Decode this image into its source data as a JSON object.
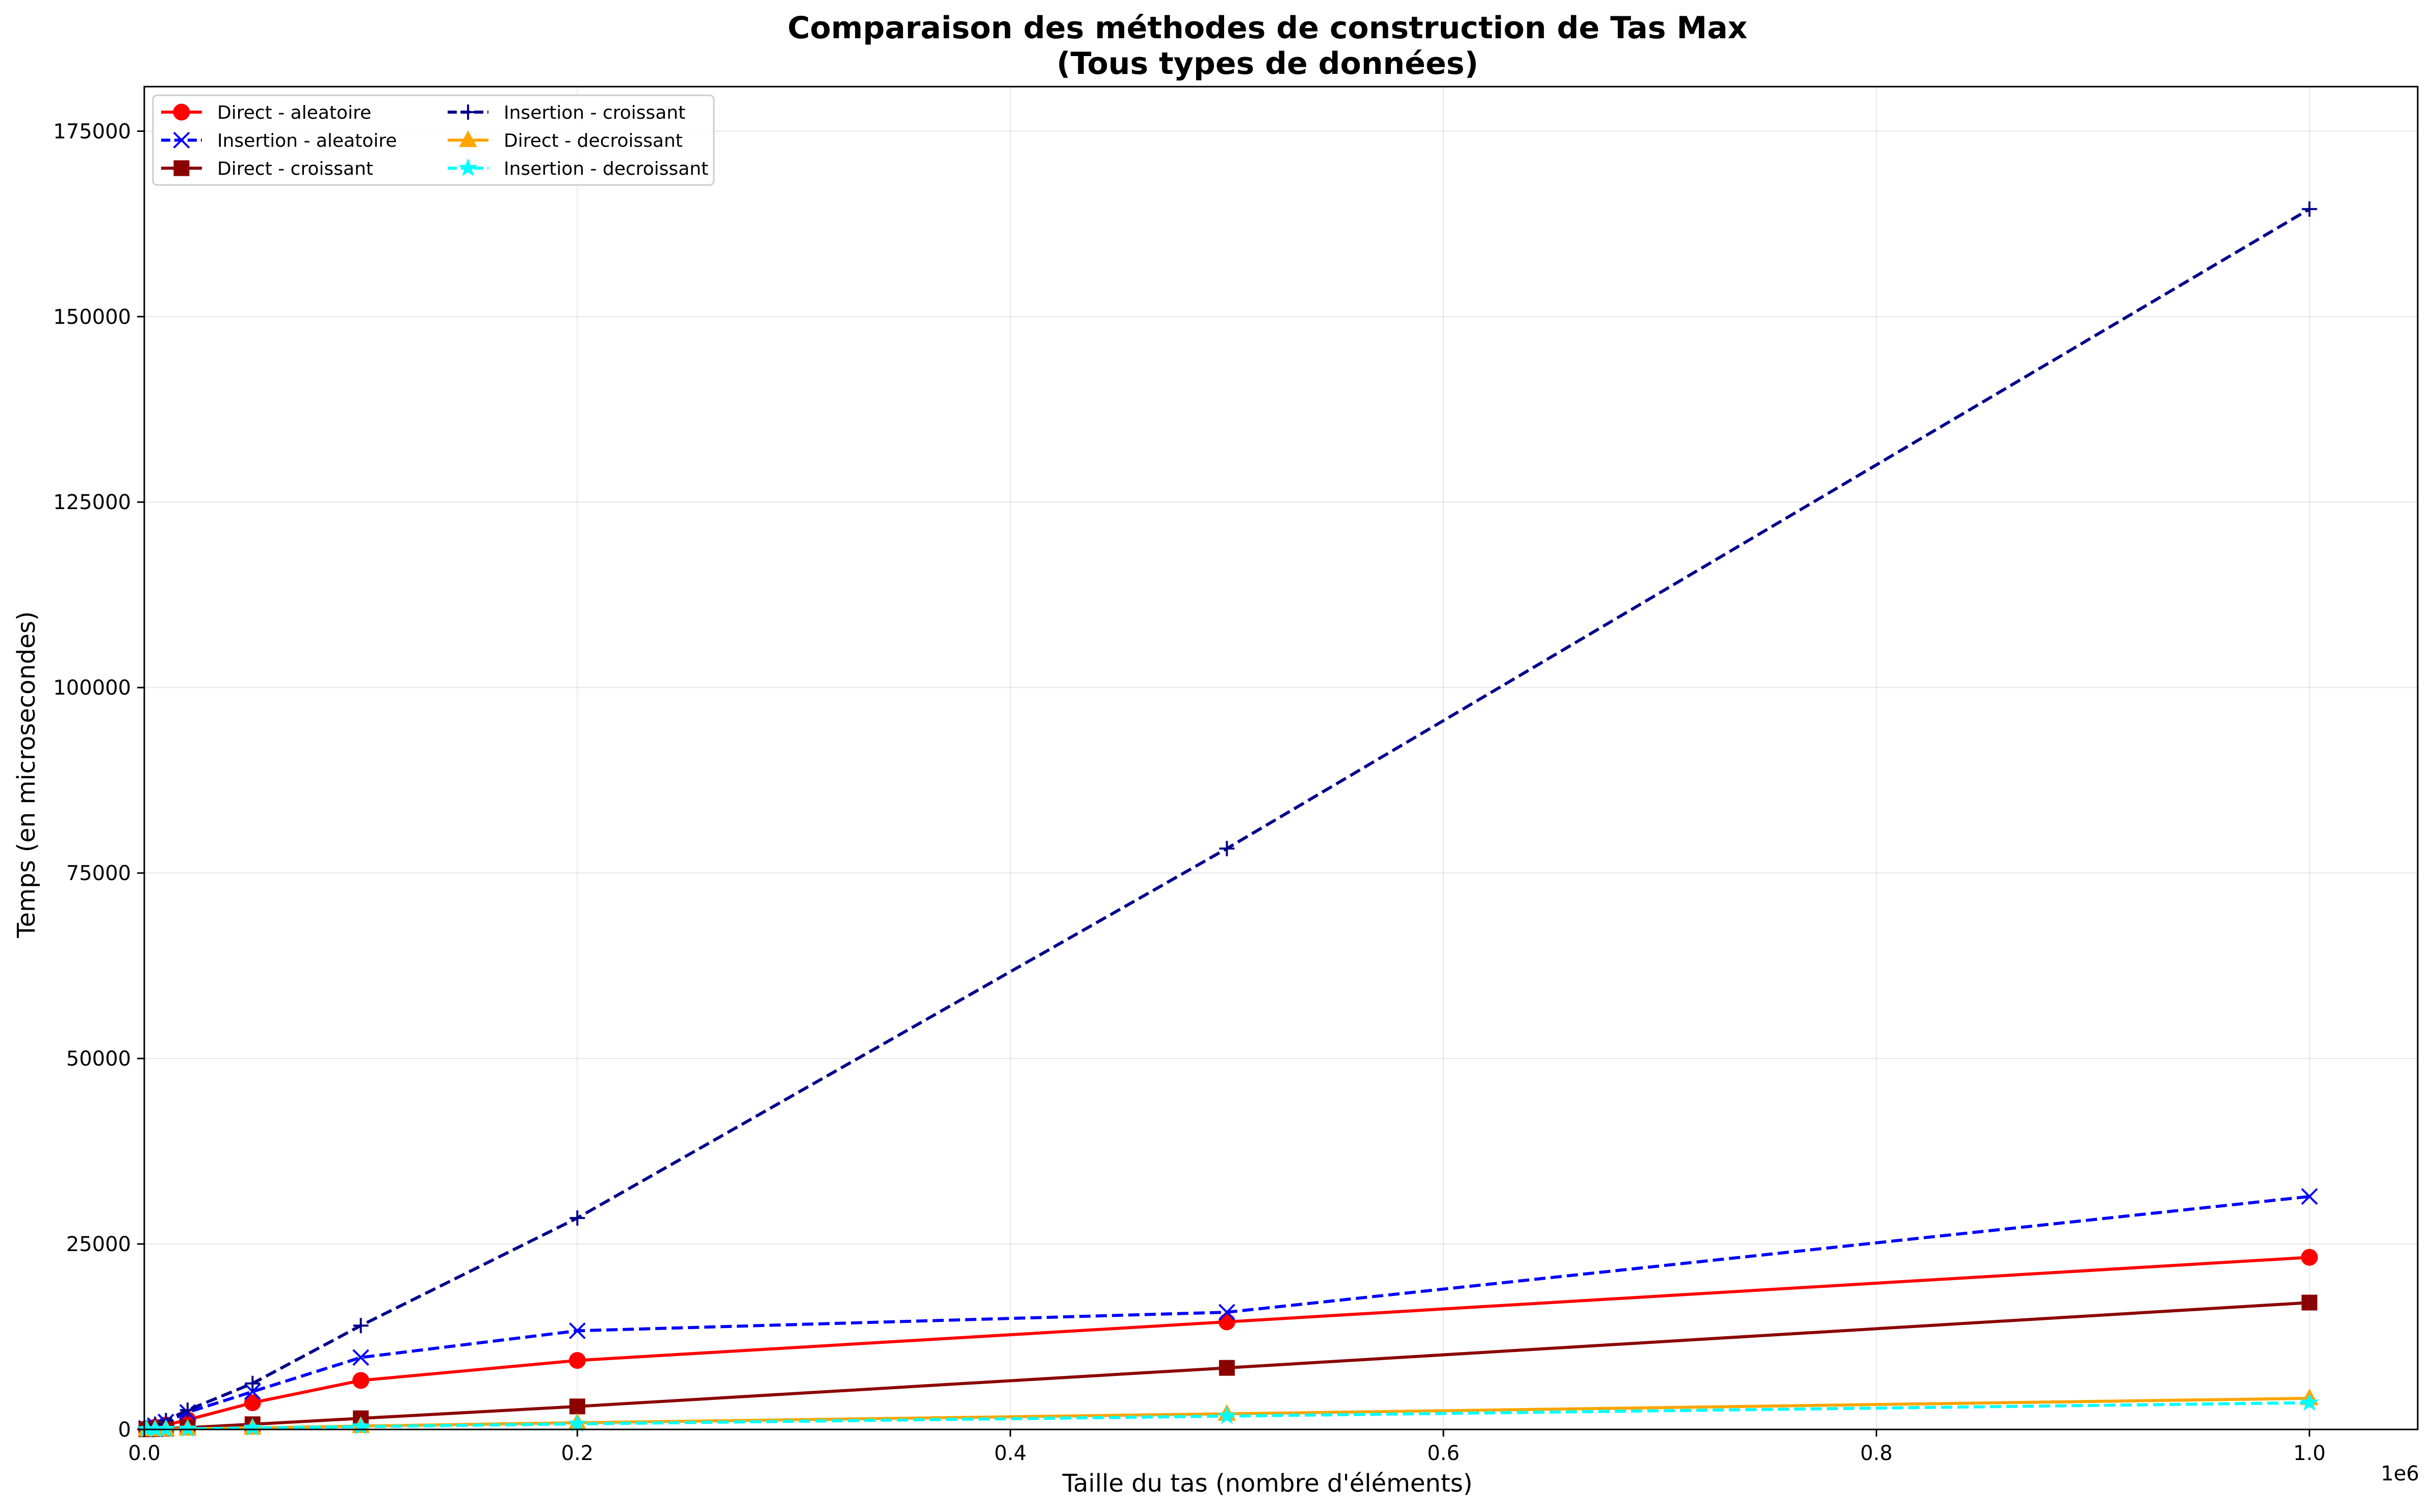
{
  "chart_data": {
    "type": "line",
    "title_line1": "Comparaison des méthodes de construction de Tas Max",
    "title_line2": "(Tous types de données)",
    "xlabel": "Taille du tas (nombre d'éléments)",
    "ylabel": "Temps (en microsecondes)",
    "x_offset_label": "1e6",
    "xlim": [
      0,
      1050000
    ],
    "ylim": [
      0,
      181000
    ],
    "x_ticks": [
      0,
      200000,
      400000,
      600000,
      800000,
      1000000
    ],
    "x_tick_labels": [
      "0.0",
      "0.2",
      "0.4",
      "0.6",
      "0.8",
      "1.0"
    ],
    "y_ticks": [
      0,
      25000,
      50000,
      75000,
      100000,
      125000,
      150000,
      175000
    ],
    "y_tick_labels": [
      "0",
      "25000",
      "50000",
      "75000",
      "100000",
      "125000",
      "150000",
      "175000"
    ],
    "grid": true,
    "legend_position": "top-left",
    "x": [
      1000,
      5000,
      10000,
      20000,
      50000,
      100000,
      200000,
      500000,
      1000000
    ],
    "series": [
      {
        "name": "Direct - aleatoire",
        "color": "#ff0000",
        "dash": "solid",
        "marker": "circle",
        "values": [
          100,
          300,
          600,
          1300,
          3600,
          6600,
          9300,
          14500,
          23200
        ]
      },
      {
        "name": "Insertion - aleatoire",
        "color": "#0000ff",
        "dash": "dashed",
        "marker": "x",
        "values": [
          150,
          500,
          1000,
          2300,
          5100,
          9700,
          13300,
          15800,
          31400
        ]
      },
      {
        "name": "Direct - croissant",
        "color": "#8b0000",
        "dash": "solid",
        "marker": "square",
        "values": [
          20,
          60,
          120,
          250,
          700,
          1500,
          3100,
          8300,
          17100
        ]
      },
      {
        "name": "Insertion - croissant",
        "color": "#00008b",
        "dash": "dashed",
        "marker": "plus",
        "values": [
          180,
          700,
          1200,
          2600,
          6200,
          14000,
          28500,
          78300,
          164500
        ]
      },
      {
        "name": "Direct - decroissant",
        "color": "#ffa500",
        "dash": "solid",
        "marker": "triangle",
        "values": [
          10,
          20,
          40,
          90,
          220,
          450,
          900,
          2100,
          4200
        ]
      },
      {
        "name": "Insertion - decroissant",
        "color": "#00ffff",
        "dash": "dashed",
        "marker": "star",
        "values": [
          8,
          18,
          35,
          80,
          200,
          380,
          750,
          1800,
          3600
        ]
      }
    ]
  }
}
